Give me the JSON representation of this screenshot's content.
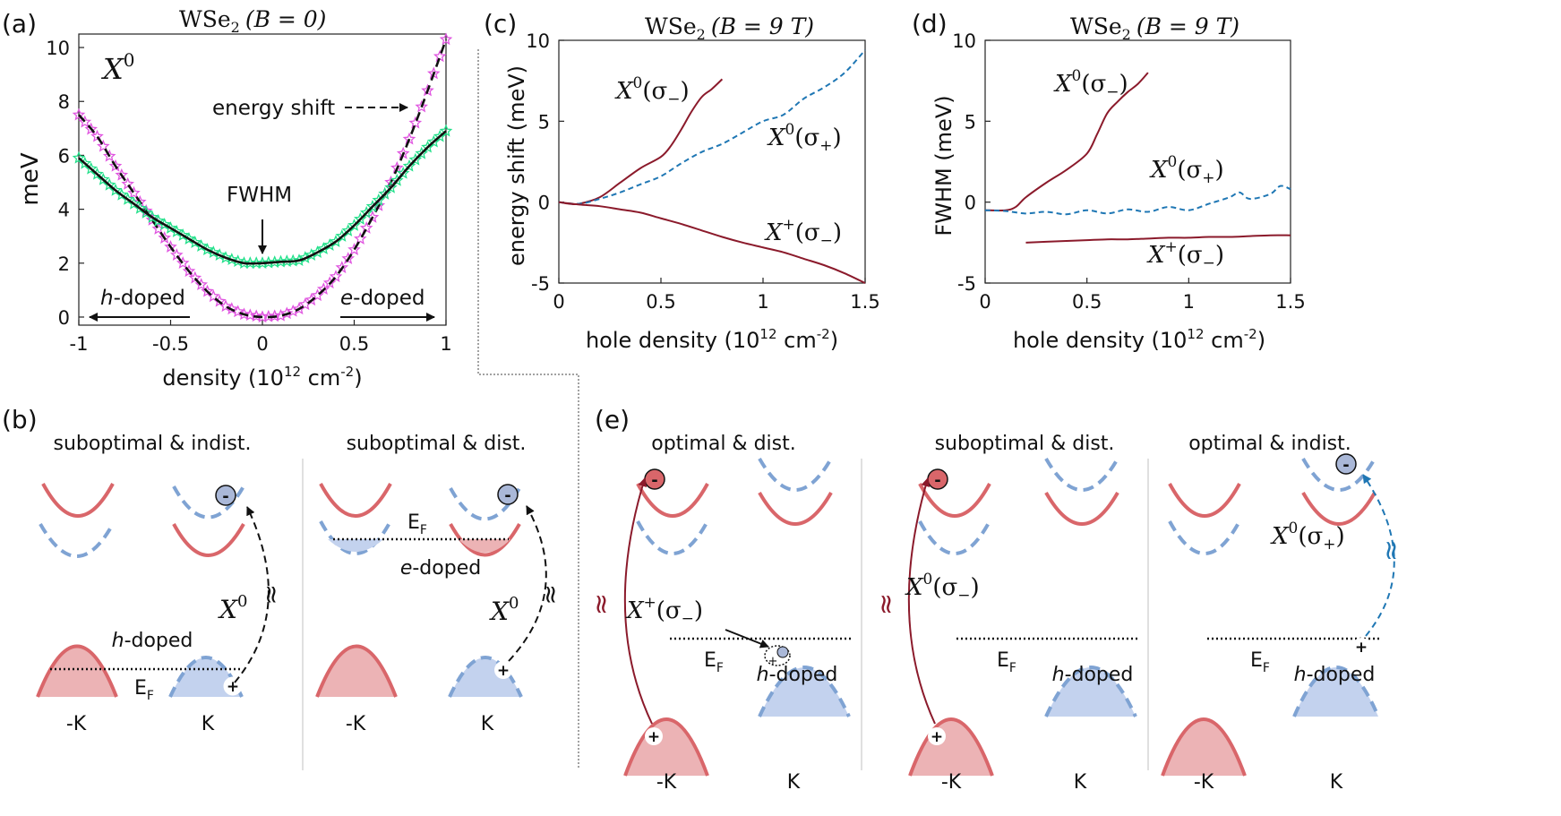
{
  "colors": {
    "red": "#8b1a2b",
    "blue": "#1f77b4",
    "magenta": "#e055e0",
    "green": "#22e08a",
    "bandRed": "#d9666a",
    "bandRedFill": "#ecb3b5",
    "bandBlue": "#7fa3d3",
    "bandBlueFill": "#c3d2ee"
  },
  "chart_data": [
    {
      "panel": "(a)",
      "type": "scatter",
      "title": "WSe",
      "title_sub": "2",
      "title_cond": "(B = 0)",
      "xlabel": "density (10",
      "xlabel_exp": "12",
      "xlabel_tail": " cm",
      "xlabel_exp2": "-2",
      "xlabel_close": ")",
      "ylabel": "meV",
      "xlim": [
        -1,
        1
      ],
      "ylim": [
        -0.3,
        10.5
      ],
      "xticks": [
        "-1",
        "-0.5",
        "0",
        "0.5",
        "1"
      ],
      "xtick_vals": [
        -1,
        -0.5,
        0,
        0.5,
        1
      ],
      "yticks": [
        "0",
        "2",
        "4",
        "6",
        "8",
        "10"
      ],
      "ytick_vals": [
        0,
        2,
        4,
        6,
        8,
        10
      ],
      "label_X": "X",
      "label_X_sup": "0",
      "annotations": {
        "energy_shift": "energy shift",
        "fwhm": "FWHM",
        "h_doped_it": "h",
        "h_doped": "-doped",
        "e_doped_it": "e",
        "e_doped": "-doped"
      },
      "series": [
        {
          "name": "energy shift",
          "marker": "magenta-star",
          "x": [
            -1,
            -0.9,
            -0.8,
            -0.7,
            -0.6,
            -0.5,
            -0.4,
            -0.3,
            -0.2,
            -0.1,
            0,
            0.1,
            0.2,
            0.3,
            0.4,
            0.5,
            0.6,
            0.7,
            0.8,
            0.9,
            1
          ],
          "y": [
            7.5,
            6.7,
            5.6,
            4.6,
            3.6,
            2.6,
            1.7,
            0.95,
            0.4,
            0.1,
            0,
            0.05,
            0.3,
            0.8,
            1.5,
            2.5,
            3.7,
            5.0,
            6.6,
            8.4,
            10.3
          ]
        },
        {
          "name": "FWHM",
          "marker": "green-star",
          "x": [
            -1,
            -0.9,
            -0.8,
            -0.7,
            -0.6,
            -0.5,
            -0.4,
            -0.3,
            -0.2,
            -0.1,
            0,
            0.1,
            0.2,
            0.3,
            0.4,
            0.5,
            0.6,
            0.7,
            0.8,
            0.9,
            1
          ],
          "y": [
            5.9,
            5.3,
            4.7,
            4.2,
            3.7,
            3.3,
            2.9,
            2.5,
            2.2,
            2.0,
            2.0,
            2.05,
            2.1,
            2.4,
            2.8,
            3.4,
            4.1,
            4.8,
            5.6,
            6.3,
            6.9
          ]
        }
      ]
    },
    {
      "panel": "(c)",
      "type": "line",
      "title": "WSe",
      "title_sub": "2",
      "title_cond": "(B = 9 T)",
      "xlabel": "hole density (10",
      "xlabel_exp": "12",
      "xlabel_tail": " cm",
      "xlabel_exp2": "-2",
      "xlabel_close": ")",
      "ylabel": "energy shift  (meV)",
      "xlim": [
        0,
        1.5
      ],
      "ylim": [
        -5,
        10
      ],
      "xticks": [
        "0",
        "0.5",
        "1",
        "1.5"
      ],
      "xtick_vals": [
        0,
        0.5,
        1,
        1.5
      ],
      "yticks": [
        "-5",
        "0",
        "5",
        "10"
      ],
      "ytick_vals": [
        -5,
        0,
        5,
        10
      ],
      "series": [
        {
          "name": "X0(σ−)",
          "label_X": "X",
          "label_sup": "0",
          "label_pol": "(σ",
          "label_sub": "−",
          "label_close": ")",
          "style": "solid-red",
          "x": [
            0,
            0.05,
            0.1,
            0.2,
            0.3,
            0.4,
            0.5,
            0.55,
            0.6,
            0.65,
            0.7,
            0.75,
            0.8
          ],
          "y": [
            0,
            -0.1,
            -0.1,
            0.3,
            1.2,
            2.1,
            2.8,
            3.5,
            4.5,
            5.6,
            6.5,
            7.0,
            7.6
          ]
        },
        {
          "name": "X0(σ+)",
          "label_X": "X",
          "label_sup": "0",
          "label_pol": "(σ",
          "label_sub": "+",
          "label_close": ")",
          "style": "dashed-blue",
          "x": [
            0,
            0.1,
            0.2,
            0.3,
            0.4,
            0.5,
            0.6,
            0.7,
            0.8,
            0.9,
            1.0,
            1.1,
            1.2,
            1.3,
            1.4,
            1.5
          ],
          "y": [
            0,
            -0.1,
            0.2,
            0.6,
            1.1,
            1.6,
            2.4,
            3.1,
            3.6,
            4.3,
            5.0,
            5.4,
            6.4,
            7.1,
            8.0,
            9.4
          ]
        },
        {
          "name": "X+(σ−)",
          "label_X": "X",
          "label_sup": "+",
          "label_pol": "(σ",
          "label_sub": "−",
          "label_close": ")",
          "style": "solid-red",
          "x": [
            0,
            0.1,
            0.2,
            0.3,
            0.4,
            0.5,
            0.6,
            0.7,
            0.8,
            0.9,
            1.0,
            1.1,
            1.2,
            1.3,
            1.4,
            1.5
          ],
          "y": [
            0,
            -0.15,
            -0.25,
            -0.45,
            -0.65,
            -1.0,
            -1.35,
            -1.75,
            -2.15,
            -2.5,
            -2.8,
            -3.1,
            -3.5,
            -3.9,
            -4.4,
            -5.0
          ]
        }
      ]
    },
    {
      "panel": "(d)",
      "type": "line",
      "title": "WSe",
      "title_sub": "2",
      "title_cond": "(B = 9 T)",
      "xlabel": "hole density (10",
      "xlabel_exp": "12",
      "xlabel_tail": " cm",
      "xlabel_exp2": "-2",
      "xlabel_close": ")",
      "ylabel": "FWHM (meV)",
      "xlim": [
        0,
        1.5
      ],
      "ylim": [
        -5,
        10
      ],
      "xticks": [
        "0",
        "0.5",
        "1",
        "1.5"
      ],
      "xtick_vals": [
        0,
        0.5,
        1,
        1.5
      ],
      "yticks": [
        "-5",
        "0",
        "5",
        "10"
      ],
      "ytick_vals": [
        -5,
        0,
        5,
        10
      ],
      "series": [
        {
          "name": "X0(σ−)",
          "label_X": "X",
          "label_sup": "0",
          "label_pol": "(σ",
          "label_sub": "−",
          "label_close": ")",
          "style": "solid-red",
          "x": [
            0,
            0.1,
            0.15,
            0.2,
            0.3,
            0.4,
            0.5,
            0.55,
            0.6,
            0.65,
            0.7,
            0.75,
            0.8
          ],
          "y": [
            -0.5,
            -0.5,
            -0.3,
            0.3,
            1.2,
            2.0,
            3.0,
            4.2,
            5.5,
            6.2,
            6.8,
            7.3,
            8.0
          ]
        },
        {
          "name": "X0(σ+)",
          "label_X": "X",
          "label_sup": "0",
          "label_pol": "(σ",
          "label_sub": "+",
          "label_close": ")",
          "style": "dashed-blue",
          "x": [
            0,
            0.1,
            0.2,
            0.3,
            0.4,
            0.5,
            0.6,
            0.7,
            0.8,
            0.9,
            1.0,
            1.1,
            1.2,
            1.25,
            1.3,
            1.4,
            1.45,
            1.5
          ],
          "y": [
            -0.5,
            -0.55,
            -0.7,
            -0.6,
            -0.75,
            -0.5,
            -0.7,
            -0.45,
            -0.6,
            -0.3,
            -0.5,
            -0.1,
            0.3,
            0.6,
            0.2,
            0.5,
            1.0,
            0.8
          ]
        },
        {
          "name": "X+(σ−)",
          "label_X": "X",
          "label_sup": "+",
          "label_pol": "(σ",
          "label_sub": "−",
          "label_close": ")",
          "style": "solid-red",
          "x": [
            0.2,
            0.3,
            0.4,
            0.5,
            0.6,
            0.7,
            0.8,
            0.9,
            1.0,
            1.1,
            1.2,
            1.3,
            1.4,
            1.5
          ],
          "y": [
            -2.5,
            -2.45,
            -2.4,
            -2.35,
            -2.3,
            -2.3,
            -2.25,
            -2.2,
            -2.2,
            -2.15,
            -2.15,
            -2.1,
            -2.05,
            -2.05
          ]
        }
      ]
    }
  ],
  "panel_labels": {
    "a": "(a)",
    "b": "(b)",
    "c": "(c)",
    "d": "(d)",
    "e": "(e)"
  },
  "schematics": {
    "b1": {
      "title": "suboptimal & indist.",
      "ef": "E",
      "ef_sub": "F",
      "doping_it": "h",
      "doping": "-doped",
      "exciton": "X",
      "exciton_sup": "0",
      "approx": "≈",
      "minus": "-",
      "plus": "+"
    },
    "b2": {
      "title": "suboptimal & dist.",
      "ef": "E",
      "ef_sub": "F",
      "doping_it": "e",
      "doping": "-doped",
      "exciton": "X",
      "exciton_sup": "0",
      "approx": "≈",
      "minus": "-",
      "plus": "+"
    },
    "e1": {
      "title": "optimal & dist.",
      "ef": "E",
      "ef_sub": "F",
      "doping_it": "h",
      "doping": "-doped",
      "exciton": "X",
      "exciton_sup": "+",
      "exciton_pol": "(σ",
      "exciton_sub": "−",
      "exciton_close": ")",
      "approx": "≈",
      "minus": "-",
      "plus": "+"
    },
    "e2": {
      "title": "suboptimal & dist.",
      "ef": "E",
      "ef_sub": "F",
      "doping_it": "h",
      "doping": "-doped",
      "exciton": "X",
      "exciton_sup": "0",
      "exciton_pol": "(σ",
      "exciton_sub": "−",
      "exciton_close": ")",
      "approx": "≈",
      "minus": "-",
      "plus": "+"
    },
    "e3": {
      "title": "optimal & indist.",
      "ef": "E",
      "ef_sub": "F",
      "doping_it": "h",
      "doping": "-doped",
      "exciton": "X",
      "exciton_sup": "0",
      "exciton_pol": "(σ",
      "exciton_sub": "+",
      "exciton_close": ")",
      "approx": "≈",
      "minus": "-",
      "plus": "+"
    },
    "valley_minusK": "-K",
    "valley_K": "K"
  }
}
